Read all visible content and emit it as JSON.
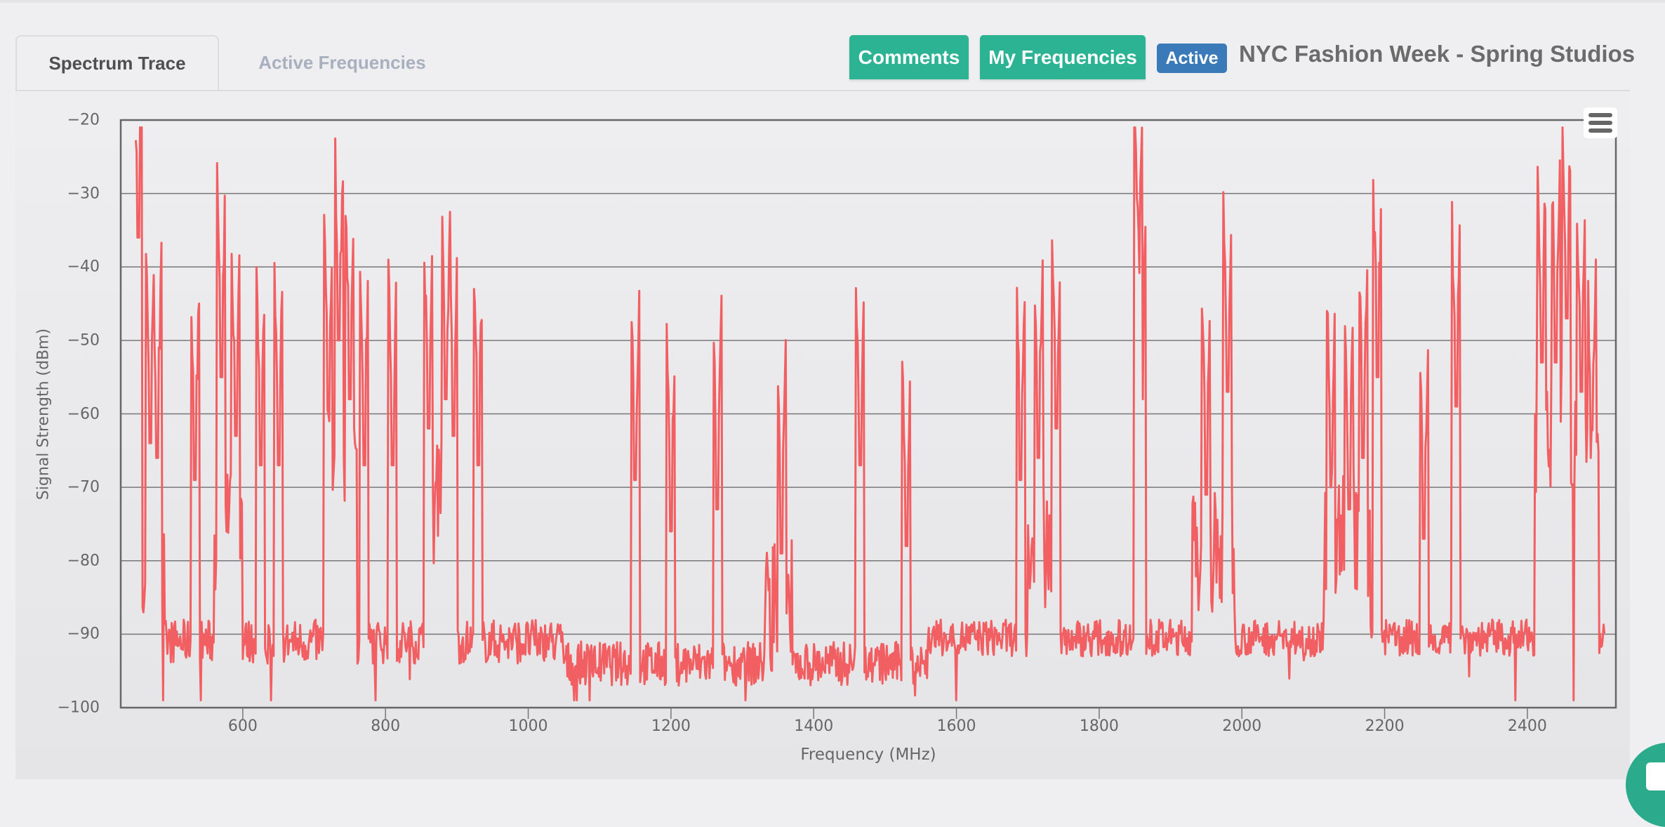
{
  "tabs": [
    {
      "label": "Spectrum Trace",
      "active": true
    },
    {
      "label": "Active Frequencies",
      "active": false
    }
  ],
  "header": {
    "comments_button": "Comments",
    "my_frequencies_button": "My Frequencies",
    "status_badge": "Active",
    "event_title": "NYC Fashion Week - Spring Studios"
  },
  "colors": {
    "accent_green": "#2bb393",
    "badge_blue": "#3a7ab8",
    "trace_red": "#f25f62",
    "inactive_tab": "#a8b0bf"
  },
  "chart_menu": {
    "icon": "hamburger-menu-icon"
  },
  "chart_data": {
    "type": "line",
    "title": "",
    "xlabel": "Frequency (MHz)",
    "ylabel": "Signal Strength (dBm)",
    "xlim": [
      429,
      2524
    ],
    "ylim": [
      -100,
      -20
    ],
    "x_ticks": [
      600,
      800,
      1000,
      1200,
      1400,
      1600,
      1800,
      2000,
      2200,
      2400
    ],
    "y_ticks": [
      -20,
      -30,
      -40,
      -50,
      -60,
      -70,
      -80,
      -90,
      -100
    ],
    "grid": {
      "horizontal": true,
      "vertical": false
    },
    "legend": "none",
    "series": [
      {
        "name": "Spectrum Trace",
        "color": "#f25f62",
        "noise_floor": [
          {
            "from": 450,
            "to": 1050,
            "min": -94,
            "max": -88
          },
          {
            "from": 1050,
            "to": 1560,
            "min": -97,
            "max": -91
          },
          {
            "from": 1560,
            "to": 2510,
            "min": -93,
            "max": -88
          }
        ],
        "peaks": [
          {
            "x": 453,
            "y": -36
          },
          {
            "x": 470,
            "y": -64
          },
          {
            "x": 480,
            "y": -66
          },
          {
            "x": 533,
            "y": -69
          },
          {
            "x": 570,
            "y": -55
          },
          {
            "x": 590,
            "y": -63
          },
          {
            "x": 625,
            "y": -67
          },
          {
            "x": 650,
            "y": -67
          },
          {
            "x": 720,
            "y": -61
          },
          {
            "x": 735,
            "y": -50
          },
          {
            "x": 750,
            "y": -58
          },
          {
            "x": 770,
            "y": -67
          },
          {
            "x": 810,
            "y": -67
          },
          {
            "x": 860,
            "y": -62
          },
          {
            "x": 885,
            "y": -58
          },
          {
            "x": 895,
            "y": -63
          },
          {
            "x": 930,
            "y": -67
          },
          {
            "x": 1150,
            "y": -69
          },
          {
            "x": 1200,
            "y": -76
          },
          {
            "x": 1265,
            "y": -73
          },
          {
            "x": 1355,
            "y": -79
          },
          {
            "x": 1465,
            "y": -67
          },
          {
            "x": 1530,
            "y": -78
          },
          {
            "x": 1690,
            "y": -69
          },
          {
            "x": 1715,
            "y": -66
          },
          {
            "x": 1740,
            "y": -62
          },
          {
            "x": 1855,
            "y": -42
          },
          {
            "x": 1860,
            "y": -58
          },
          {
            "x": 1950,
            "y": -71
          },
          {
            "x": 1980,
            "y": -57
          },
          {
            "x": 2125,
            "y": -70
          },
          {
            "x": 2150,
            "y": -73
          },
          {
            "x": 2170,
            "y": -66
          },
          {
            "x": 2190,
            "y": -55
          },
          {
            "x": 2255,
            "y": -77
          },
          {
            "x": 2300,
            "y": -59
          },
          {
            "x": 2420,
            "y": -53
          },
          {
            "x": 2440,
            "y": -53
          },
          {
            "x": 2455,
            "y": -47
          },
          {
            "x": 2475,
            "y": -57
          },
          {
            "x": 2490,
            "y": -66
          }
        ],
        "elevated_regions": [
          {
            "from": 450,
            "to": 490,
            "level": -84
          },
          {
            "from": 560,
            "to": 600,
            "level": -75
          },
          {
            "from": 715,
            "to": 760,
            "level": -68
          },
          {
            "from": 855,
            "to": 900,
            "level": -72
          },
          {
            "from": 1330,
            "to": 1370,
            "level": -86
          },
          {
            "from": 1700,
            "to": 1745,
            "level": -78
          },
          {
            "from": 1930,
            "to": 1990,
            "level": -78
          },
          {
            "from": 2115,
            "to": 2180,
            "level": -76
          },
          {
            "from": 2410,
            "to": 2500,
            "level": -62
          }
        ]
      }
    ]
  }
}
